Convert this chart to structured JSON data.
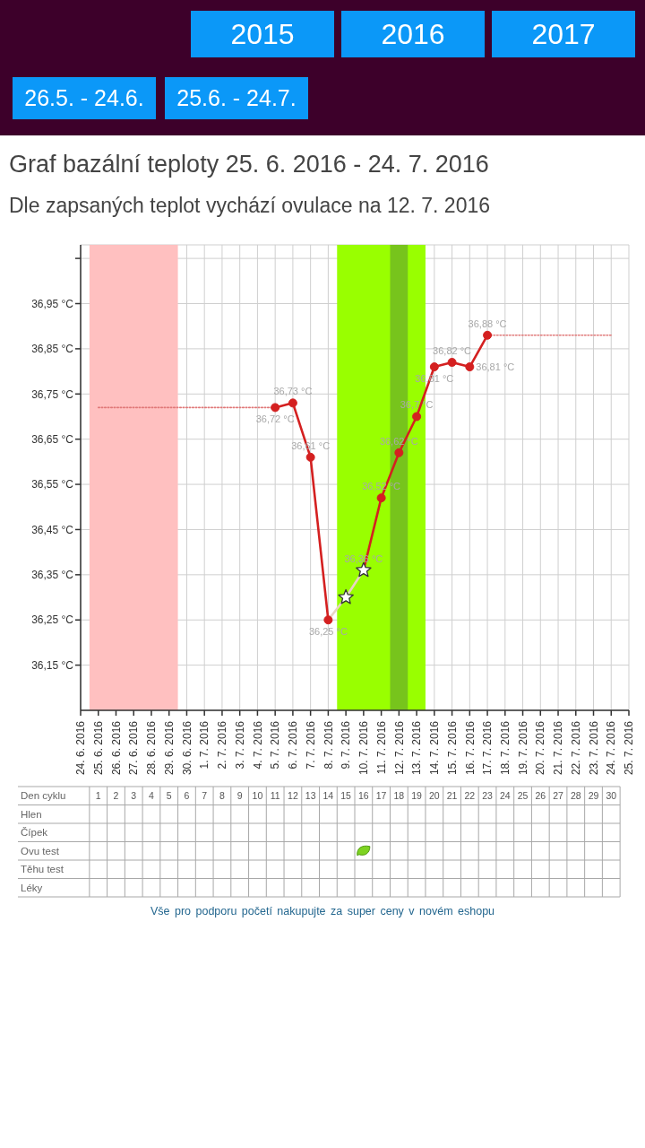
{
  "chart_data": {
    "type": "line",
    "title": "Graf bazální teploty 25. 6. 2016 - 24. 7. 2016",
    "subtitle": "Dle zapsaných teplot vychází ovulace na 12. 7. 2016",
    "xlim": [
      "2016-06-24",
      "2016-07-25"
    ],
    "xticks": [
      {
        "value": "2016-06-24",
        "label": "24. 6. 2016"
      },
      {
        "value": "2016-06-25",
        "label": "25. 6. 2016"
      },
      {
        "value": "2016-06-26",
        "label": "26. 6. 2016"
      },
      {
        "value": "2016-06-27",
        "label": "27. 6. 2016"
      },
      {
        "value": "2016-06-28",
        "label": "28. 6. 2016"
      },
      {
        "value": "2016-06-29",
        "label": "29. 6. 2016"
      },
      {
        "value": "2016-06-30",
        "label": "30. 6. 2016"
      },
      {
        "value": "2016-07-01",
        "label": "1. 7. 2016"
      },
      {
        "value": "2016-07-02",
        "label": "2. 7. 2016"
      },
      {
        "value": "2016-07-03",
        "label": "3. 7. 2016"
      },
      {
        "value": "2016-07-04",
        "label": "4. 7. 2016"
      },
      {
        "value": "2016-07-05",
        "label": "5. 7. 2016"
      },
      {
        "value": "2016-07-06",
        "label": "6. 7. 2016"
      },
      {
        "value": "2016-07-07",
        "label": "7. 7. 2016"
      },
      {
        "value": "2016-07-08",
        "label": "8. 7. 2016"
      },
      {
        "value": "2016-07-09",
        "label": "9. 7. 2016"
      },
      {
        "value": "2016-07-10",
        "label": "10. 7. 2016"
      },
      {
        "value": "2016-07-11",
        "label": "11. 7. 2016"
      },
      {
        "value": "2016-07-12",
        "label": "12. 7. 2016"
      },
      {
        "value": "2016-07-13",
        "label": "13. 7. 2016"
      },
      {
        "value": "2016-07-14",
        "label": "14. 7. 2016"
      },
      {
        "value": "2016-07-15",
        "label": "15. 7. 2016"
      },
      {
        "value": "2016-07-16",
        "label": "16. 7. 2016"
      },
      {
        "value": "2016-07-17",
        "label": "17. 7. 2016"
      },
      {
        "value": "2016-07-18",
        "label": "18. 7. 2016"
      },
      {
        "value": "2016-07-19",
        "label": "19. 7. 2016"
      },
      {
        "value": "2016-07-20",
        "label": "20. 7. 2016"
      },
      {
        "value": "2016-07-21",
        "label": "21. 7. 2016"
      },
      {
        "value": "2016-07-22",
        "label": "22. 7. 2016"
      },
      {
        "value": "2016-07-23",
        "label": "23. 7. 2016"
      },
      {
        "value": "2016-07-24",
        "label": "24. 7. 2016"
      },
      {
        "value": "2016-07-25",
        "label": "25. 7. 2016"
      }
    ],
    "ylim": [
      36.05,
      37.08
    ],
    "yticks": [
      {
        "value": 36.15,
        "label": "36,15 °C"
      },
      {
        "value": 36.25,
        "label": "36,25 °C"
      },
      {
        "value": 36.35,
        "label": "36,35 °C"
      },
      {
        "value": 36.45,
        "label": "36,45 °C"
      },
      {
        "value": 36.55,
        "label": "36,55 °C"
      },
      {
        "value": 36.65,
        "label": "36,65 °C"
      },
      {
        "value": 36.75,
        "label": "36,75 °C"
      },
      {
        "value": 36.85,
        "label": "36,85 °C"
      },
      {
        "value": 36.95,
        "label": "36,95 °C"
      },
      {
        "value": 37.05,
        "label": null
      }
    ],
    "grid": true,
    "bands": [
      {
        "axis": "x",
        "from": "2016-06-24T12:00",
        "to": "2016-06-29T12:00",
        "color": "#ffc0c0"
      },
      {
        "axis": "x",
        "from": "2016-07-08T12:00",
        "to": "2016-07-13T12:00",
        "color": "#99ff00"
      },
      {
        "axis": "x",
        "from": "2016-07-11T12:00",
        "to": "2016-07-12T12:00",
        "color": "#77c41c"
      }
    ],
    "series": [
      {
        "type": "line",
        "color": "#e07878",
        "marker": "none",
        "line_style": "dotted",
        "x": [
          "2016-06-25",
          "2016-07-05"
        ],
        "values": [
          36.72,
          36.72
        ]
      },
      {
        "type": "line",
        "color": "#e07878",
        "marker": "none",
        "line_style": "dotted",
        "x": [
          "2016-07-17",
          "2016-07-24"
        ],
        "values": [
          36.88,
          36.88
        ]
      },
      {
        "type": "line",
        "color": "#e8d4c4",
        "marker": "none",
        "x": [
          "2016-07-08",
          "2016-07-09",
          "2016-07-10"
        ],
        "values": [
          36.25,
          36.3,
          36.36
        ]
      },
      {
        "type": "line",
        "color": "#d42020",
        "x": [
          "2016-07-10",
          "2016-07-11"
        ],
        "values": [
          36.36,
          36.52
        ]
      },
      {
        "type": "line",
        "color": "#d42020",
        "marker": "circle",
        "x": [
          "2016-07-05",
          "2016-07-06",
          "2016-07-07",
          "2016-07-08",
          "2016-07-09",
          "2016-07-10",
          "2016-07-11",
          "2016-07-12",
          "2016-07-13",
          "2016-07-14",
          "2016-07-15",
          "2016-07-16",
          "2016-07-17"
        ],
        "values": [
          36.72,
          36.73,
          36.61,
          36.25,
          null,
          null,
          36.52,
          36.62,
          36.7,
          36.81,
          36.82,
          36.81,
          36.88
        ],
        "value_labels": [
          "36,72 °C",
          "36,73 °C",
          "36,61 °C",
          "36,25 °C",
          null,
          null,
          "36,52 °C",
          "36,62 °C",
          "36,7 °C",
          "36,81 °C",
          "36,82 °C",
          "36,81 °C",
          "36,88 °C"
        ]
      },
      {
        "type": "scatter",
        "color": "#ffffff",
        "marker": "star",
        "x": [
          "2016-07-09",
          "2016-07-10"
        ],
        "values": [
          36.3,
          36.36
        ],
        "value_labels": [
          null,
          "36,36 °C"
        ]
      }
    ],
    "annotations": [
      "2015",
      "2016",
      "2017",
      "26.5. - 24.6.",
      "25.6. - 24.7.",
      "Den cyklu",
      "Hlen",
      "Čípek",
      "Ovu test",
      "Těhu test",
      "Léky",
      "1",
      "2",
      "3",
      "4",
      "5",
      "6",
      "7",
      "8",
      "9",
      "10",
      "11",
      "12",
      "13",
      "14",
      "15",
      "16",
      "17",
      "18",
      "19",
      "20",
      "21",
      "22",
      "23",
      "24",
      "25",
      "26",
      "27",
      "28",
      "29",
      "30",
      "Vše pro podporu početí nakupujte za super ceny v novém eshopu"
    ]
  }
}
